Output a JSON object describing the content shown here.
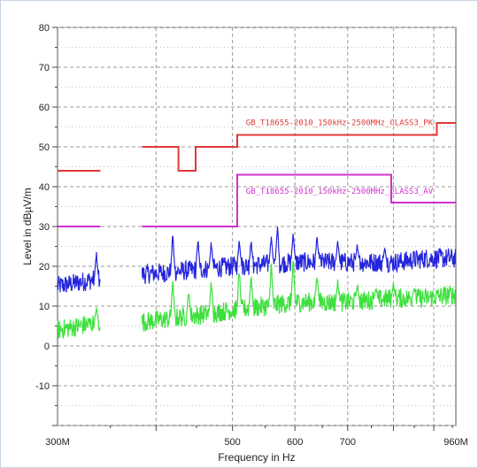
{
  "chart_data": {
    "type": "line",
    "xlabel": "Frequency in Hz",
    "ylabel": "Level in dBµV/m",
    "x_scale": "log",
    "xlim_mhz": [
      300,
      960
    ],
    "ylim": [
      -20,
      80
    ],
    "y_ticks": [
      80,
      70,
      60,
      50,
      40,
      30,
      20,
      10,
      0,
      -10
    ],
    "x_tick_labels": [
      {
        "mhz": 300,
        "label": "300M"
      },
      {
        "mhz": 500,
        "label": "500"
      },
      {
        "mhz": 600,
        "label": "600"
      },
      {
        "mhz": 700,
        "label": "700"
      },
      {
        "mhz": 960,
        "label": "960M"
      }
    ],
    "grid": true,
    "annotations": [
      {
        "text": "GB_T18655-2010_150kHz-2500MHz_CLASS3_PK",
        "x_mhz": 512,
        "y": 55.5,
        "color": "#e03838"
      },
      {
        "text": "GB_T18655-2010_150kHz-2500MHz_CLASS3_AV",
        "x_mhz": 512,
        "y": 38.2,
        "color": "#d030d0"
      }
    ],
    "limit_lines": [
      {
        "color": "#e03838",
        "segments": [
          [
            [
              300,
              44
            ],
            [
              340,
              44
            ]
          ],
          [
            [
              384,
              50
            ],
            [
              427,
              50
            ],
            [
              427,
              44
            ],
            [
              449,
              44
            ],
            [
              449,
              50
            ],
            [
              507,
              50
            ],
            [
              507,
              53
            ],
            [
              908,
              53
            ],
            [
              908,
              56
            ],
            [
              960,
              56
            ]
          ]
        ]
      },
      {
        "color": "#d030d0",
        "segments": [
          [
            [
              300,
              30
            ],
            [
              340,
              30
            ]
          ],
          [
            [
              384,
              30
            ],
            [
              507,
              30
            ],
            [
              507,
              43
            ],
            [
              795,
              43
            ],
            [
              795,
              36
            ],
            [
              960,
              36
            ]
          ]
        ]
      }
    ],
    "traces": [
      {
        "color": "#2424dc",
        "ranges": [
          [
            300,
            340
          ],
          [
            384,
            960
          ]
        ],
        "baseline": [
          [
            300,
            15
          ],
          [
            340,
            17
          ],
          [
            384,
            18
          ],
          [
            500,
            20
          ],
          [
            600,
            21
          ],
          [
            700,
            21
          ],
          [
            800,
            21
          ],
          [
            880,
            22
          ],
          [
            960,
            22
          ]
        ],
        "peaks": [
          [
            336,
            24
          ],
          [
            420,
            29
          ],
          [
            452,
            28
          ],
          [
            470,
            27
          ],
          [
            510,
            28
          ],
          [
            528,
            27
          ],
          [
            560,
            29
          ],
          [
            570,
            32
          ],
          [
            597,
            30
          ],
          [
            640,
            28
          ],
          [
            680,
            27
          ],
          [
            720,
            26
          ],
          [
            780,
            25
          ]
        ]
      },
      {
        "color": "#3de03d",
        "ranges": [
          [
            300,
            340
          ],
          [
            384,
            960
          ]
        ],
        "baseline": [
          [
            300,
            4
          ],
          [
            340,
            6
          ],
          [
            384,
            6
          ],
          [
            500,
            9
          ],
          [
            600,
            11
          ],
          [
            700,
            11
          ],
          [
            800,
            12
          ],
          [
            880,
            12
          ],
          [
            960,
            13
          ]
        ],
        "peaks": [
          [
            336,
            10
          ],
          [
            420,
            18
          ],
          [
            440,
            15
          ],
          [
            470,
            17
          ],
          [
            510,
            21
          ],
          [
            528,
            19
          ],
          [
            560,
            22
          ],
          [
            597,
            23
          ],
          [
            640,
            19
          ],
          [
            680,
            17
          ],
          [
            720,
            16
          ],
          [
            760,
            15
          ],
          [
            800,
            16
          ],
          [
            850,
            15
          ]
        ]
      }
    ]
  }
}
